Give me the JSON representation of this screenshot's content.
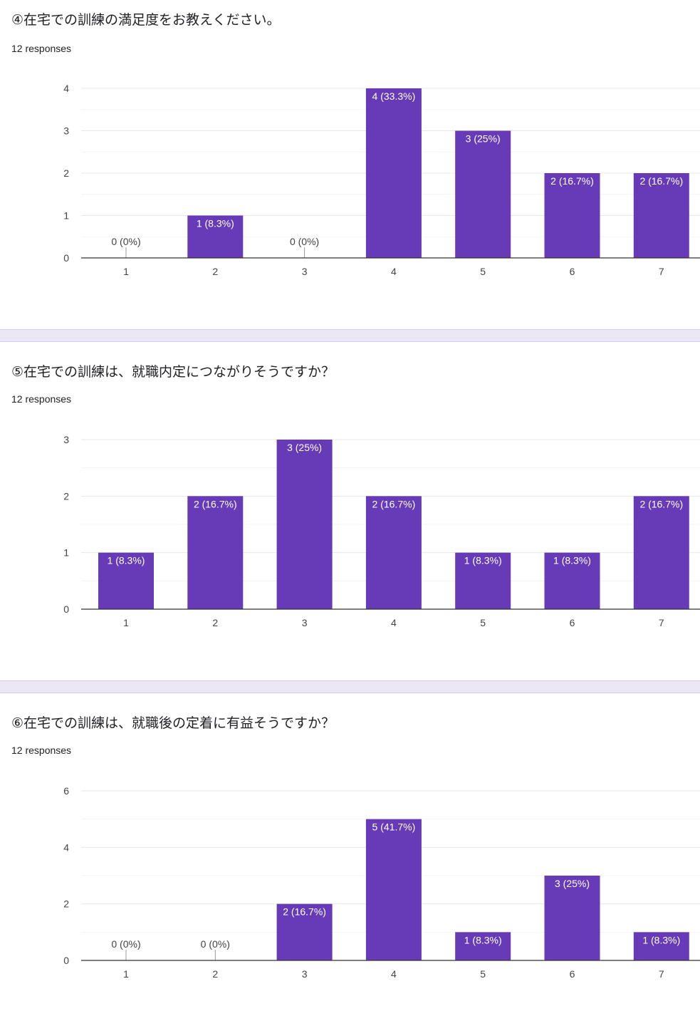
{
  "colors": {
    "bar": "#673ab7",
    "bar_label": "#ffffff",
    "outside_label": "#424242",
    "grid_major": "#e8e8e8",
    "grid_minor": "#f3f3f3",
    "axis": "#333333",
    "tick_text": "#444444",
    "divider": "#ebe7f7"
  },
  "sections": [
    {
      "title": "④在宅での訓練の満足度をお教えください。",
      "responses": "12 responses"
    },
    {
      "title": "⑤在宅での訓練は、就職内定につながりそうですか？",
      "responses": "12 responses"
    },
    {
      "title": "⑥在宅での訓練は、就職後の定着に有益そうですか？",
      "responses": "12 responses"
    }
  ],
  "chart_data": [
    {
      "type": "bar",
      "categories": [
        "1",
        "2",
        "3",
        "4",
        "5",
        "6",
        "7"
      ],
      "values": [
        0,
        1,
        0,
        4,
        3,
        2,
        2
      ],
      "labels": [
        "0 (0%)",
        "1 (8.3%)",
        "0 (0%)",
        "4 (33.3%)",
        "3 (25%)",
        "2 (16.7%)",
        "2 (16.7%)"
      ],
      "ylim": [
        0,
        4
      ],
      "yticks": [
        "0",
        "1",
        "2",
        "3",
        "4"
      ],
      "ytick_values": [
        0,
        1,
        2,
        3,
        4
      ],
      "grid": true
    },
    {
      "type": "bar",
      "categories": [
        "1",
        "2",
        "3",
        "4",
        "5",
        "6",
        "7"
      ],
      "values": [
        1,
        2,
        3,
        2,
        1,
        1,
        2
      ],
      "labels": [
        "1 (8.3%)",
        "2 (16.7%)",
        "3 (25%)",
        "2 (16.7%)",
        "1 (8.3%)",
        "1 (8.3%)",
        "2 (16.7%)"
      ],
      "ylim": [
        0,
        3
      ],
      "yticks": [
        "0",
        "1",
        "2",
        "3"
      ],
      "ytick_values": [
        0,
        1,
        2,
        3
      ],
      "grid": true
    },
    {
      "type": "bar",
      "categories": [
        "1",
        "2",
        "3",
        "4",
        "5",
        "6",
        "7"
      ],
      "values": [
        0,
        0,
        2,
        5,
        1,
        3,
        1
      ],
      "labels": [
        "0 (0%)",
        "0 (0%)",
        "2 (16.7%)",
        "5 (41.7%)",
        "1 (8.3%)",
        "3 (25%)",
        "1 (8.3%)"
      ],
      "ylim": [
        0,
        6
      ],
      "yticks": [
        "0",
        "2",
        "4",
        "6"
      ],
      "ytick_values": [
        0,
        2,
        4,
        6
      ],
      "grid": true
    }
  ]
}
